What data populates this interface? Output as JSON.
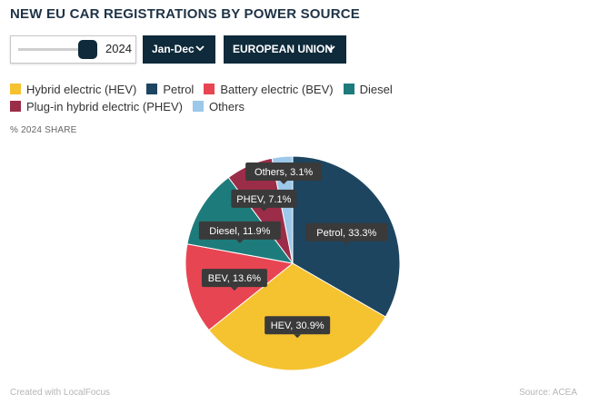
{
  "title": "NEW EU CAR REGISTRATIONS BY POWER SOURCE",
  "controls": {
    "year": "2024",
    "year_slider_fraction": 0.95,
    "period": "Jan-Dec",
    "region": "EUROPEAN UNION"
  },
  "share_label": "% 2024 SHARE",
  "footer": {
    "credit": "Created with LocalFocus",
    "source": "Source: ACEA"
  },
  "chart_data": {
    "type": "pie",
    "legend_position": "top-left",
    "legend": [
      {
        "name": "Hybrid electric (HEV)",
        "color": "#f5c230"
      },
      {
        "name": "Petrol",
        "color": "#1d4560"
      },
      {
        "name": "Battery electric (BEV)",
        "color": "#e84553"
      },
      {
        "name": "Diesel",
        "color": "#1e7b7b"
      },
      {
        "name": "Plug-in hybrid electric (PHEV)",
        "color": "#9b2d48"
      },
      {
        "name": "Others",
        "color": "#9cc8ea"
      }
    ],
    "slices": [
      {
        "label": "Petrol, 33.3%",
        "value": 33.3,
        "color": "#1d4560"
      },
      {
        "label": "HEV, 30.9%",
        "value": 30.9,
        "color": "#f5c230"
      },
      {
        "label": "BEV, 13.6%",
        "value": 13.6,
        "color": "#e84553"
      },
      {
        "label": "Diesel, 11.9%",
        "value": 11.9,
        "color": "#1e7b7b"
      },
      {
        "label": "PHEV, 7.1%",
        "value": 7.1,
        "color": "#9b2d48"
      },
      {
        "label": "Others, 3.1%",
        "value": 3.1,
        "color": "#9cc8ea"
      }
    ]
  }
}
